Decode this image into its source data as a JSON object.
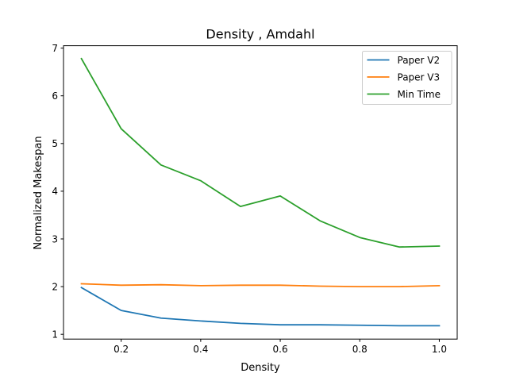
{
  "chart_data": {
    "type": "line",
    "title": "Density , Amdahl",
    "xlabel": "Density",
    "ylabel": "Normalized Makespan",
    "xlim": [
      0.055,
      1.045
    ],
    "ylim": [
      0.9,
      7.05
    ],
    "xticks": [
      0.2,
      0.4,
      0.6,
      0.8,
      1.0
    ],
    "xtick_labels": [
      "0.2",
      "0.4",
      "0.6",
      "0.8",
      "1.0"
    ],
    "yticks": [
      1,
      2,
      3,
      4,
      5,
      6,
      7
    ],
    "ytick_labels": [
      "1",
      "2",
      "3",
      "4",
      "5",
      "6",
      "7"
    ],
    "grid": false,
    "legend_position": "top-right",
    "x": [
      0.1,
      0.2,
      0.3,
      0.4,
      0.5,
      0.6,
      0.7,
      0.8,
      0.9,
      1.0
    ],
    "series": [
      {
        "name": "Paper V2",
        "color": "#1f77b4",
        "values": [
          1.98,
          1.5,
          1.34,
          1.28,
          1.23,
          1.2,
          1.2,
          1.19,
          1.18,
          1.18
        ]
      },
      {
        "name": "Paper V3",
        "color": "#ff7f0e",
        "values": [
          2.06,
          2.03,
          2.04,
          2.02,
          2.03,
          2.03,
          2.01,
          2.0,
          2.0,
          2.02
        ]
      },
      {
        "name": "Min Time",
        "color": "#2ca02c",
        "values": [
          6.78,
          5.31,
          4.55,
          4.22,
          3.68,
          3.9,
          3.38,
          3.03,
          2.83,
          2.85
        ]
      }
    ]
  }
}
